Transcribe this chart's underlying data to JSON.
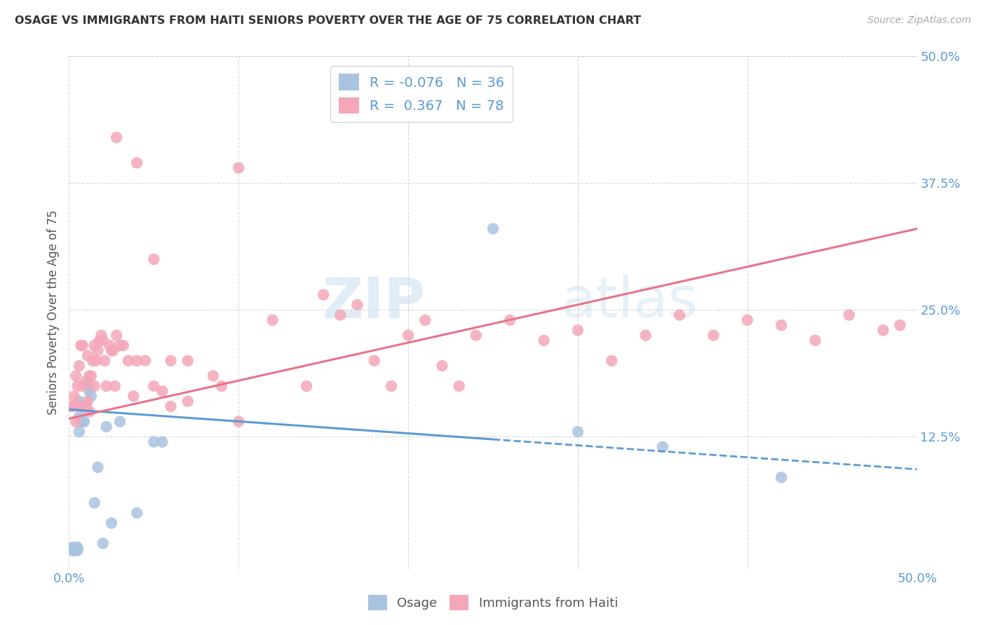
{
  "title": "OSAGE VS IMMIGRANTS FROM HAITI SENIORS POVERTY OVER THE AGE OF 75 CORRELATION CHART",
  "source": "Source: ZipAtlas.com",
  "ylabel": "Seniors Poverty Over the Age of 75",
  "xlim": [
    0.0,
    0.5
  ],
  "ylim": [
    -0.005,
    0.5
  ],
  "yticks": [
    0.125,
    0.25,
    0.375,
    0.5
  ],
  "ytick_labels": [
    "12.5%",
    "25.0%",
    "37.5%",
    "50.0%"
  ],
  "xtick_positions": [
    0.0,
    0.1,
    0.2,
    0.3,
    0.4,
    0.5
  ],
  "xtick_labels": [
    "0.0%",
    "",
    "",
    "",
    "",
    "50.0%"
  ],
  "background_color": "#ffffff",
  "watermark": "ZIPatlas",
  "osage_color": "#a8c4e0",
  "haiti_color": "#f4a7b9",
  "osage_line_color": "#5b9bd5",
  "haiti_line_color": "#e8728a",
  "osage_R": -0.076,
  "osage_N": 36,
  "haiti_R": 0.367,
  "haiti_N": 78,
  "osage_x": [
    0.001,
    0.002,
    0.002,
    0.003,
    0.003,
    0.004,
    0.004,
    0.005,
    0.005,
    0.005,
    0.006,
    0.006,
    0.006,
    0.007,
    0.007,
    0.008,
    0.008,
    0.009,
    0.009,
    0.01,
    0.011,
    0.012,
    0.013,
    0.015,
    0.017,
    0.02,
    0.022,
    0.025,
    0.03,
    0.04,
    0.05,
    0.055,
    0.25,
    0.3,
    0.35,
    0.42
  ],
  "osage_y": [
    0.015,
    0.013,
    0.016,
    0.013,
    0.015,
    0.013,
    0.016,
    0.013,
    0.015,
    0.016,
    0.13,
    0.145,
    0.16,
    0.14,
    0.155,
    0.14,
    0.155,
    0.14,
    0.155,
    0.155,
    0.175,
    0.17,
    0.165,
    0.06,
    0.095,
    0.02,
    0.135,
    0.04,
    0.14,
    0.05,
    0.12,
    0.12,
    0.33,
    0.13,
    0.115,
    0.085
  ],
  "haiti_x": [
    0.001,
    0.002,
    0.003,
    0.004,
    0.004,
    0.005,
    0.006,
    0.006,
    0.007,
    0.008,
    0.008,
    0.009,
    0.01,
    0.01,
    0.011,
    0.011,
    0.012,
    0.012,
    0.013,
    0.014,
    0.015,
    0.015,
    0.016,
    0.017,
    0.018,
    0.019,
    0.02,
    0.021,
    0.022,
    0.024,
    0.025,
    0.026,
    0.027,
    0.028,
    0.03,
    0.032,
    0.035,
    0.038,
    0.04,
    0.045,
    0.05,
    0.055,
    0.06,
    0.07,
    0.1,
    0.12,
    0.14,
    0.15,
    0.16,
    0.17,
    0.18,
    0.19,
    0.2,
    0.21,
    0.22,
    0.23,
    0.24,
    0.26,
    0.28,
    0.3,
    0.32,
    0.34,
    0.36,
    0.38,
    0.4,
    0.42,
    0.44,
    0.46,
    0.48,
    0.49,
    0.028,
    0.04,
    0.05,
    0.06,
    0.07,
    0.085,
    0.09,
    0.1
  ],
  "haiti_y": [
    0.155,
    0.155,
    0.165,
    0.14,
    0.185,
    0.175,
    0.155,
    0.195,
    0.215,
    0.175,
    0.215,
    0.155,
    0.155,
    0.18,
    0.16,
    0.205,
    0.15,
    0.185,
    0.185,
    0.2,
    0.175,
    0.215,
    0.2,
    0.21,
    0.22,
    0.225,
    0.22,
    0.2,
    0.175,
    0.215,
    0.21,
    0.21,
    0.175,
    0.225,
    0.215,
    0.215,
    0.2,
    0.165,
    0.2,
    0.2,
    0.175,
    0.17,
    0.2,
    0.2,
    0.39,
    0.24,
    0.175,
    0.265,
    0.245,
    0.255,
    0.2,
    0.175,
    0.225,
    0.24,
    0.195,
    0.175,
    0.225,
    0.24,
    0.22,
    0.23,
    0.2,
    0.225,
    0.245,
    0.225,
    0.24,
    0.235,
    0.22,
    0.245,
    0.23,
    0.235,
    0.42,
    0.395,
    0.3,
    0.155,
    0.16,
    0.185,
    0.175,
    0.14
  ],
  "osage_line_x0": 0.0,
  "osage_line_x_solid_end": 0.25,
  "osage_line_x1": 0.5,
  "osage_line_y0": 0.152,
  "osage_line_y1": 0.093,
  "haiti_line_x0": 0.0,
  "haiti_line_x1": 0.5,
  "haiti_line_y0": 0.143,
  "haiti_line_y1": 0.33
}
